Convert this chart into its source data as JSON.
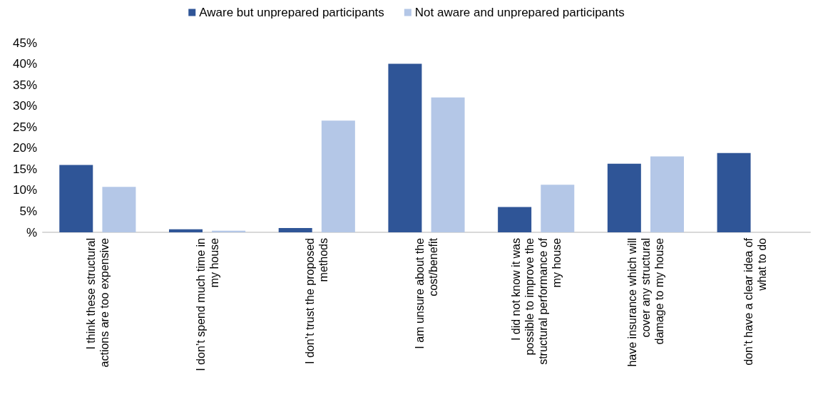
{
  "chart_data": {
    "type": "bar",
    "categories": [
      "I think these structural\nactions are too expensive",
      "I don’t spend much time in\nmy house",
      "I don’t trust the proposed\nmethods",
      "I am unsure about the\ncost/benefit",
      "I did not know it was\npossible to improve the\nstructural performance of\nmy house",
      "have insurance which will\ncover any structural\ndamage to my house",
      "don’t have a clear idea of\nwhat to do"
    ],
    "series": [
      {
        "name": "Aware but unprepared participants",
        "color": "#2f5597",
        "values": [
          16,
          0.7,
          1,
          40,
          6,
          16.3,
          18.8
        ]
      },
      {
        "name": "Not aware and unprepared participants",
        "color": "#b4c7e7",
        "values": [
          10.8,
          0.4,
          26.5,
          32,
          11.3,
          18,
          0
        ]
      }
    ],
    "ylim": [
      0,
      45
    ],
    "yticks": [
      {
        "value": 0,
        "label": "%"
      },
      {
        "value": 5,
        "label": "5%"
      },
      {
        "value": 10,
        "label": "10%"
      },
      {
        "value": 15,
        "label": "15%"
      },
      {
        "value": 20,
        "label": "20%"
      },
      {
        "value": 25,
        "label": "25%"
      },
      {
        "value": 30,
        "label": "30%"
      },
      {
        "value": 35,
        "label": "35%"
      },
      {
        "value": 40,
        "label": "40%"
      },
      {
        "value": 45,
        "label": "45%"
      }
    ],
    "grid": false,
    "legend": "top"
  }
}
